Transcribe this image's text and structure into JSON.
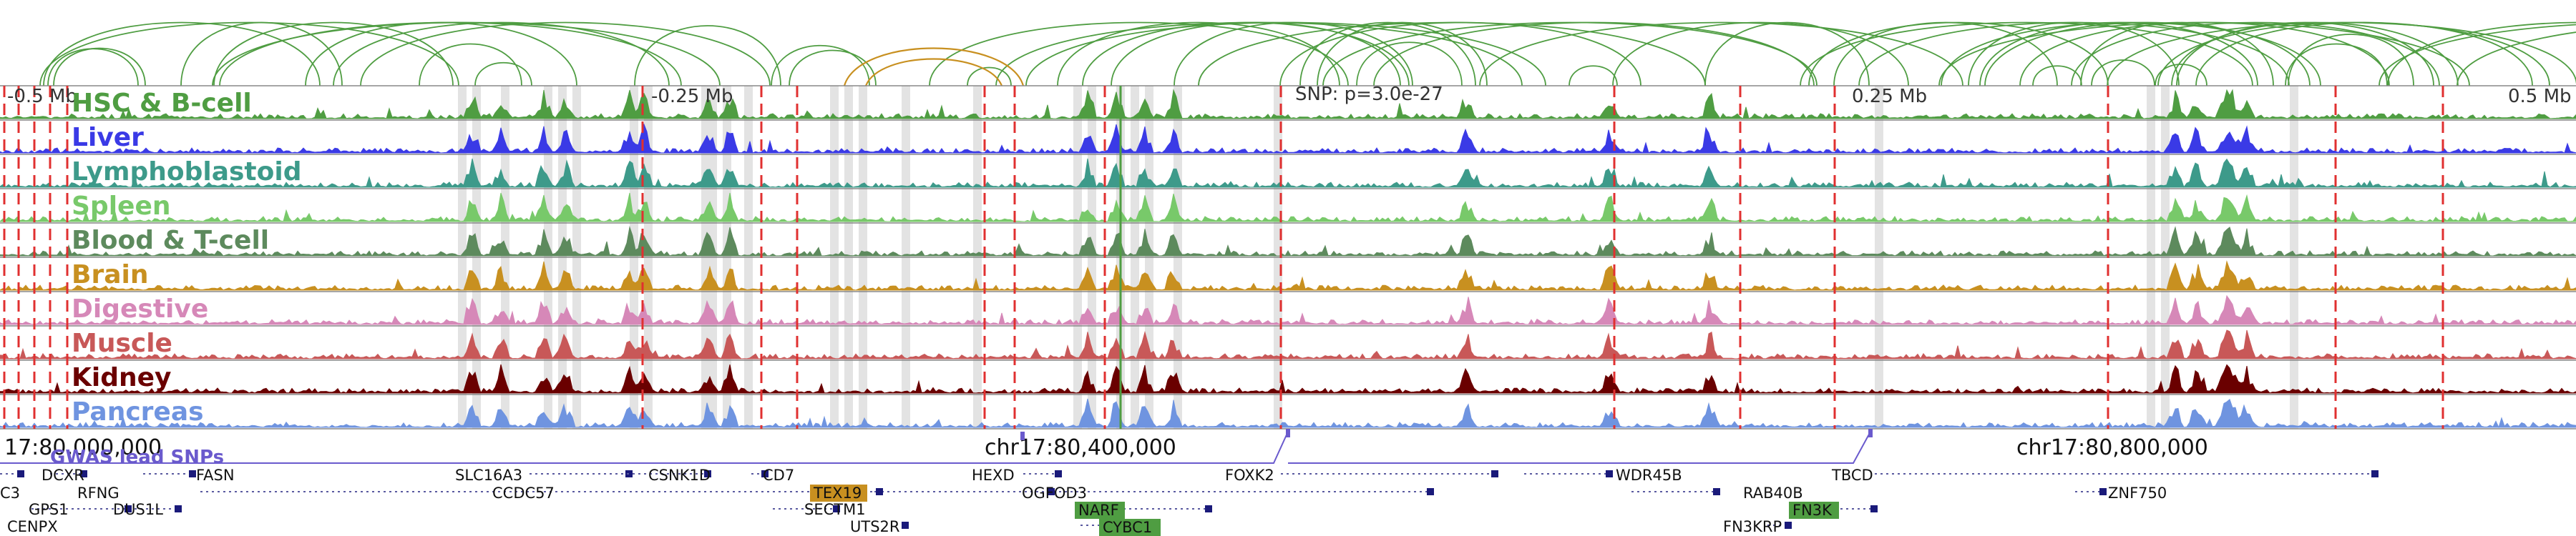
{
  "browser": {
    "scale_labels": [
      {
        "text": "-0.5 Mb",
        "kb": -500
      },
      {
        "text": "-0.25 Mb",
        "kb": -250
      },
      {
        "text": "0.25 Mb",
        "kb": 250
      },
      {
        "text": "0.5 Mb",
        "kb": 500
      }
    ],
    "snp_label": "SNP: p=3.0e-27",
    "tracks": [
      {
        "label": "HSC & B-cell",
        "color": "#4f9d42"
      },
      {
        "label": "Liver",
        "color": "#3a3ae6"
      },
      {
        "label": "Lymphoblastoid",
        "color": "#3d9a8a"
      },
      {
        "label": "Spleen",
        "color": "#78c96a"
      },
      {
        "label": "Blood & T-cell",
        "color": "#5d8a5d"
      },
      {
        "label": "Brain",
        "color": "#c89020"
      },
      {
        "label": "Digestive",
        "color": "#d688b8"
      },
      {
        "label": "Muscle",
        "color": "#c85858"
      },
      {
        "label": "Kidney",
        "color": "#6a0000"
      },
      {
        "label": "Pancreas",
        "color": "#6f94e0"
      }
    ],
    "coordinates": [
      "17:80,000,000",
      "chr17:80,400,000",
      "chr17:80,800,000"
    ],
    "gwas_label": "GWAS lead SNPs",
    "genes": [
      {
        "name": "C3",
        "style": "plain"
      },
      {
        "name": "DCXR",
        "style": "plain"
      },
      {
        "name": "FASN",
        "style": "plain"
      },
      {
        "name": "RFNG",
        "style": "plain"
      },
      {
        "name": "GPS1",
        "style": "plain"
      },
      {
        "name": "DUS1L",
        "style": "plain"
      },
      {
        "name": "CENPX",
        "style": "plain"
      },
      {
        "name": "SLC16A3",
        "style": "plain"
      },
      {
        "name": "CCDC57",
        "style": "plain"
      },
      {
        "name": "CSNK1D",
        "style": "plain"
      },
      {
        "name": "CD7",
        "style": "plain"
      },
      {
        "name": "TEX19",
        "style": "highlight",
        "color": "#c89020"
      },
      {
        "name": "SECTM1",
        "style": "plain"
      },
      {
        "name": "UTS2R",
        "style": "plain"
      },
      {
        "name": "HEXD",
        "style": "plain"
      },
      {
        "name": "OGFOD3",
        "style": "plain"
      },
      {
        "name": "NARF",
        "style": "highlight",
        "color": "#4f9d42"
      },
      {
        "name": "CYBC1",
        "style": "highlight",
        "color": "#4f9d42"
      },
      {
        "name": "FOXK2",
        "style": "plain"
      },
      {
        "name": "WDR45B",
        "style": "plain"
      },
      {
        "name": "RAB40B",
        "style": "plain"
      },
      {
        "name": "FN3K",
        "style": "highlight",
        "color": "#4f9d42"
      },
      {
        "name": "FN3KRP",
        "style": "plain"
      },
      {
        "name": "TBCD",
        "style": "plain"
      },
      {
        "name": "ZNF750",
        "style": "plain"
      }
    ]
  }
}
